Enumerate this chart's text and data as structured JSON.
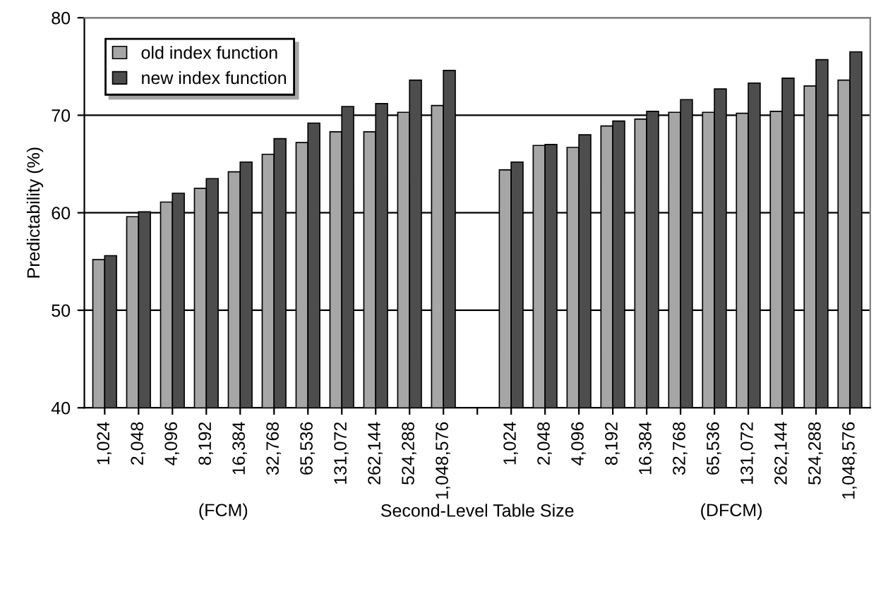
{
  "chart_data": {
    "type": "bar",
    "ylabel": "Predictability (%)",
    "xlabel": "Second-Level Table Size",
    "categories": [
      "1,024",
      "2,048",
      "4,096",
      "8,192",
      "16,384",
      "32,768",
      "65,536",
      "131,072",
      "262,144",
      "524,288",
      "1,048,576",
      null,
      "1,024",
      "2,048",
      "4,096",
      "8,192",
      "16,384",
      "32,768",
      "65,536",
      "131,072",
      "262,144",
      "524,288",
      "1,048,576"
    ],
    "series": [
      {
        "name": "old index function",
        "color": "#a6a6a6",
        "values": [
          55.2,
          59.6,
          61.1,
          62.5,
          64.2,
          66.0,
          67.2,
          68.3,
          68.3,
          70.3,
          71.0,
          null,
          64.4,
          66.9,
          66.7,
          68.9,
          69.6,
          70.3,
          70.3,
          70.2,
          70.4,
          73.0,
          73.6
        ]
      },
      {
        "name": "new index function",
        "color": "#4d4d4d",
        "values": [
          55.6,
          60.1,
          62.0,
          63.5,
          65.2,
          67.6,
          69.2,
          70.9,
          71.2,
          73.6,
          74.6,
          null,
          65.2,
          67.0,
          68.0,
          69.4,
          70.4,
          71.6,
          72.7,
          73.3,
          73.8,
          75.7,
          76.5
        ]
      }
    ],
    "ylim": [
      40,
      80
    ],
    "yticks": [
      40,
      50,
      60,
      70,
      80
    ],
    "grid": "y",
    "legend": "top left",
    "annotations": [
      "(FCM)",
      "(DFCM)"
    ]
  }
}
